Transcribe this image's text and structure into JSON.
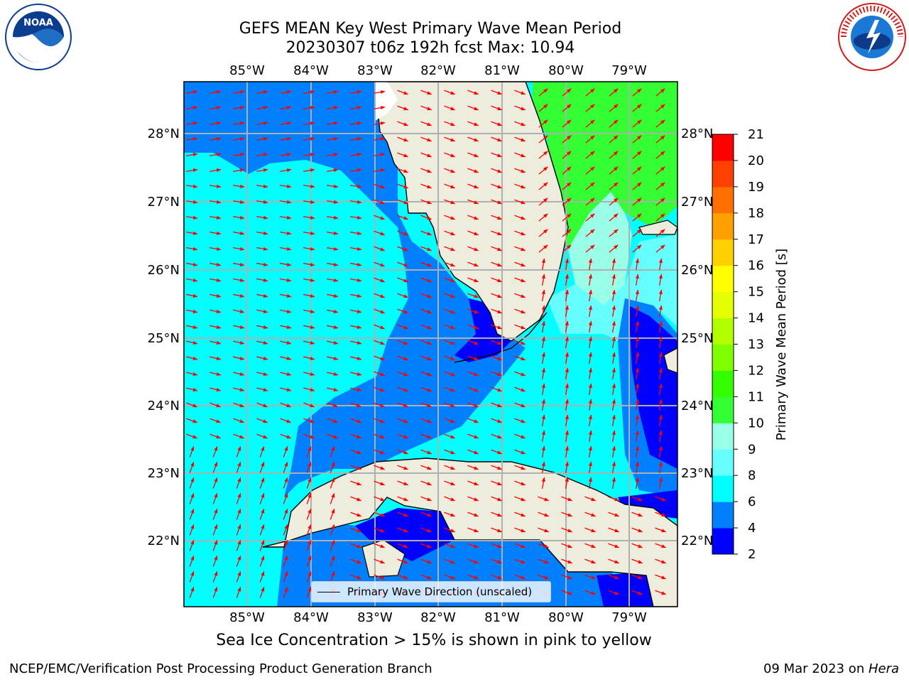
{
  "title": {
    "line1": "GEFS MEAN Key West Primary Wave Mean Period",
    "line2": "20230307 t06z 192h fcst   Max: 10.94"
  },
  "map": {
    "lon_ticks": [
      "85°W",
      "84°W",
      "83°W",
      "82°W",
      "81°W",
      "80°W",
      "79°W"
    ],
    "lat_ticks": [
      "28°N",
      "27°N",
      "26°N",
      "25°N",
      "24°N",
      "23°N",
      "22°N"
    ],
    "land_color": "#eeecdc",
    "grid_color": "#b0b0b0",
    "arrow_color": "#ff0000"
  },
  "legend": {
    "label": "Primary Wave Direction (unscaled)"
  },
  "colorbar": {
    "title": "Primary Wave Mean Period [s]",
    "ticks": [
      "2",
      "4",
      "6",
      "8",
      "9",
      "10",
      "11",
      "12",
      "13",
      "14",
      "15",
      "16",
      "17",
      "18",
      "19",
      "20",
      "21"
    ],
    "colors": [
      "#0000ff",
      "#0080ff",
      "#00ffff",
      "#66ffff",
      "#99ffe6",
      "#33ff33",
      "#33ff00",
      "#80ff00",
      "#b2ff00",
      "#e6ff00",
      "#ffff00",
      "#ffd000",
      "#ffa000",
      "#ff7000",
      "#ff4000",
      "#ff0000"
    ]
  },
  "note": "Sea Ice Concentration > 15% is shown in pink to yellow",
  "footer": {
    "left": "NCEP/EMC/Verification Post Processing Product Generation Branch",
    "date": "09 Mar 2023 on ",
    "machine": "Hera"
  },
  "logos": {
    "left": "NOAA",
    "right": "NATIONAL WEATHER SERVICE"
  }
}
